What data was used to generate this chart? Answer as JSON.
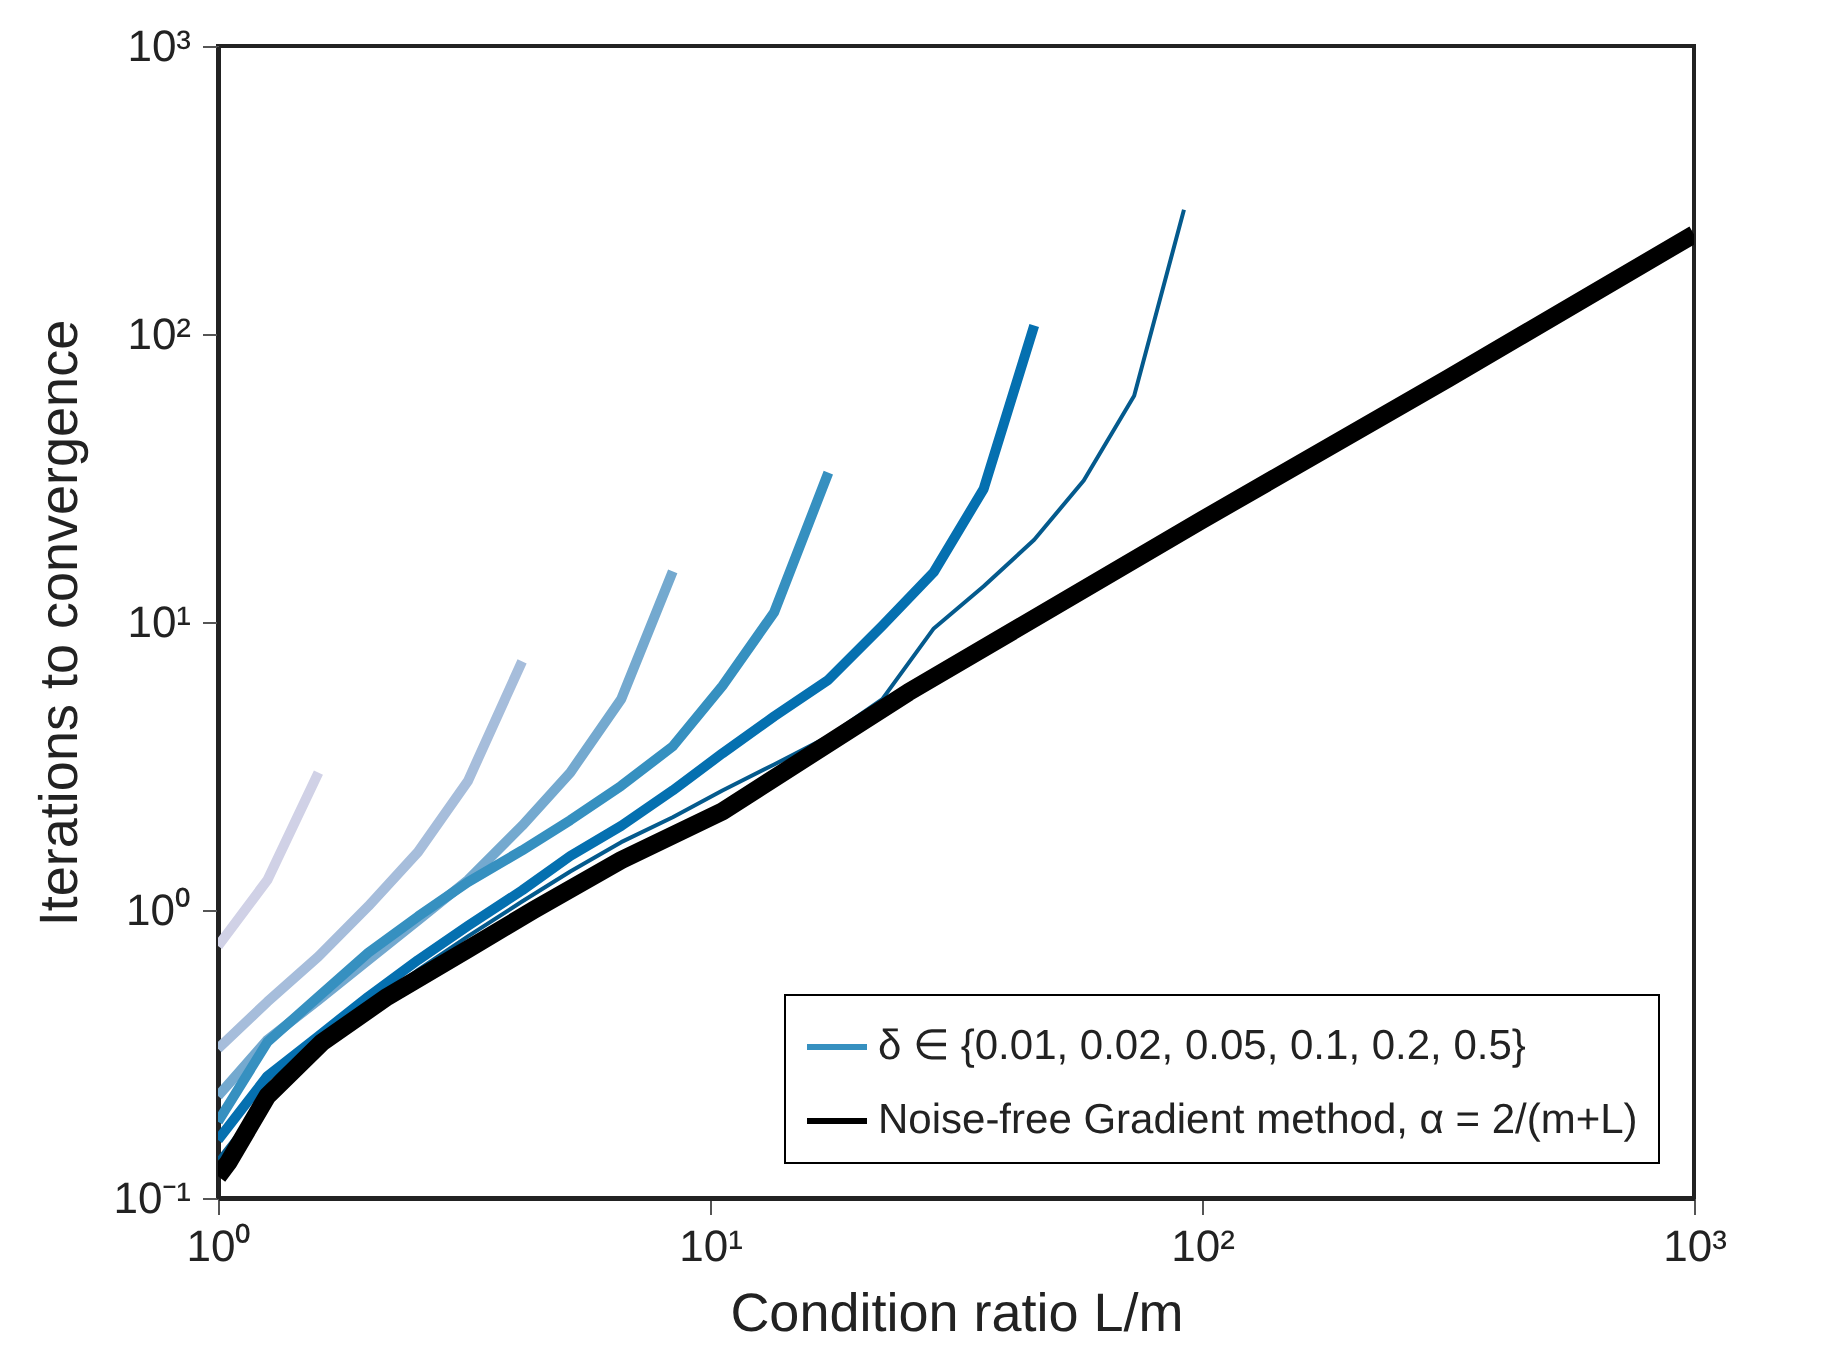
{
  "chart_data": {
    "type": "line",
    "xlabel": "Condition ratio L/m",
    "ylabel": "Iterations to convergence",
    "log": "xy",
    "xlim": [
      1,
      1000
    ],
    "ylim": [
      0.1,
      1000
    ],
    "xticks": [
      {
        "value": 1,
        "label": "10⁰"
      },
      {
        "value": 10,
        "label": "10¹"
      },
      {
        "value": 100,
        "label": "10²"
      },
      {
        "value": 1000,
        "label": "10³"
      }
    ],
    "yticks": [
      {
        "value": 0.1,
        "label": "10⁻¹"
      },
      {
        "value": 1,
        "label": "10⁰"
      },
      {
        "value": 10,
        "label": "10¹"
      },
      {
        "value": 100,
        "label": "10²"
      },
      {
        "value": 1000,
        "label": "10³"
      }
    ],
    "legend": "bottom right",
    "grid": false,
    "marker": "none",
    "line_style": "solid",
    "series": [
      {
        "color": "#d0d1e6",
        "x": [
          1,
          1.26,
          1.6
        ],
        "values": [
          0.75,
          1.27,
          3.0
        ]
      },
      {
        "color": "#a6bddb",
        "x": [
          1,
          1.26,
          1.6,
          2.02,
          2.55,
          3.22,
          4.15
        ],
        "values": [
          0.33,
          0.48,
          0.69,
          1.03,
          1.59,
          2.8,
          7.3
        ]
      },
      {
        "color": "#74a9cf",
        "x": [
          1,
          1.26,
          1.6,
          2.02,
          2.55,
          3.22,
          4.15,
          5.2,
          6.6,
          8.4
        ],
        "values": [
          0.226,
          0.354,
          0.487,
          0.67,
          0.92,
          1.27,
          1.96,
          3.0,
          5.4,
          15
        ]
      },
      {
        "name": "δ ∈ {0.01, 0.02, 0.05, 0.1, 0.2, 0.5}",
        "color": "#3690c0",
        "x": [
          1,
          1.26,
          1.6,
          2.02,
          2.55,
          3.22,
          4.15,
          5.2,
          6.6,
          8.4,
          10.6,
          13.5,
          17.4
        ],
        "values": [
          0.184,
          0.348,
          0.5,
          0.71,
          0.95,
          1.25,
          1.61,
          2.05,
          2.7,
          3.7,
          6.0,
          10.8,
          33
        ]
      },
      {
        "color": "#0570b0",
        "x": [
          1,
          1.26,
          1.6,
          2.02,
          2.55,
          3.22,
          4.15,
          5.2,
          6.6,
          8.4,
          10.6,
          13.5,
          17.4,
          22.4,
          28.5,
          36,
          45.6
        ],
        "values": [
          0.159,
          0.265,
          0.365,
          0.5,
          0.67,
          0.88,
          1.17,
          1.54,
          1.96,
          2.6,
          3.5,
          4.7,
          6.3,
          9.7,
          14.9,
          29,
          107
        ]
      },
      {
        "color": "#045a8d",
        "x": [
          1,
          1.26,
          1.6,
          2.02,
          2.55,
          3.22,
          4.15,
          5.2,
          6.6,
          8.4,
          10.6,
          13.5,
          17.4,
          22.4,
          28.5,
          36,
          45.6,
          57.5,
          72.8,
          91.9
        ],
        "values": [
          0.136,
          0.226,
          0.33,
          0.46,
          0.62,
          0.81,
          1.07,
          1.36,
          1.72,
          2.1,
          2.6,
          3.2,
          4.0,
          5.4,
          9.5,
          13.3,
          19.3,
          31,
          61,
          270
        ]
      },
      {
        "name": "Noise-free Gradient method, α = 2/(m+L)",
        "color": "#000000",
        "x": [
          1,
          1.05,
          1.26,
          1.63,
          2.21,
          3.22,
          4.38,
          6.6,
          10.6,
          25.3,
          100,
          316,
          1000
        ],
        "values": [
          0.119,
          0.133,
          0.226,
          0.348,
          0.5,
          0.73,
          1.0,
          1.49,
          2.2,
          5.7,
          22.6,
          70,
          222
        ]
      }
    ]
  }
}
